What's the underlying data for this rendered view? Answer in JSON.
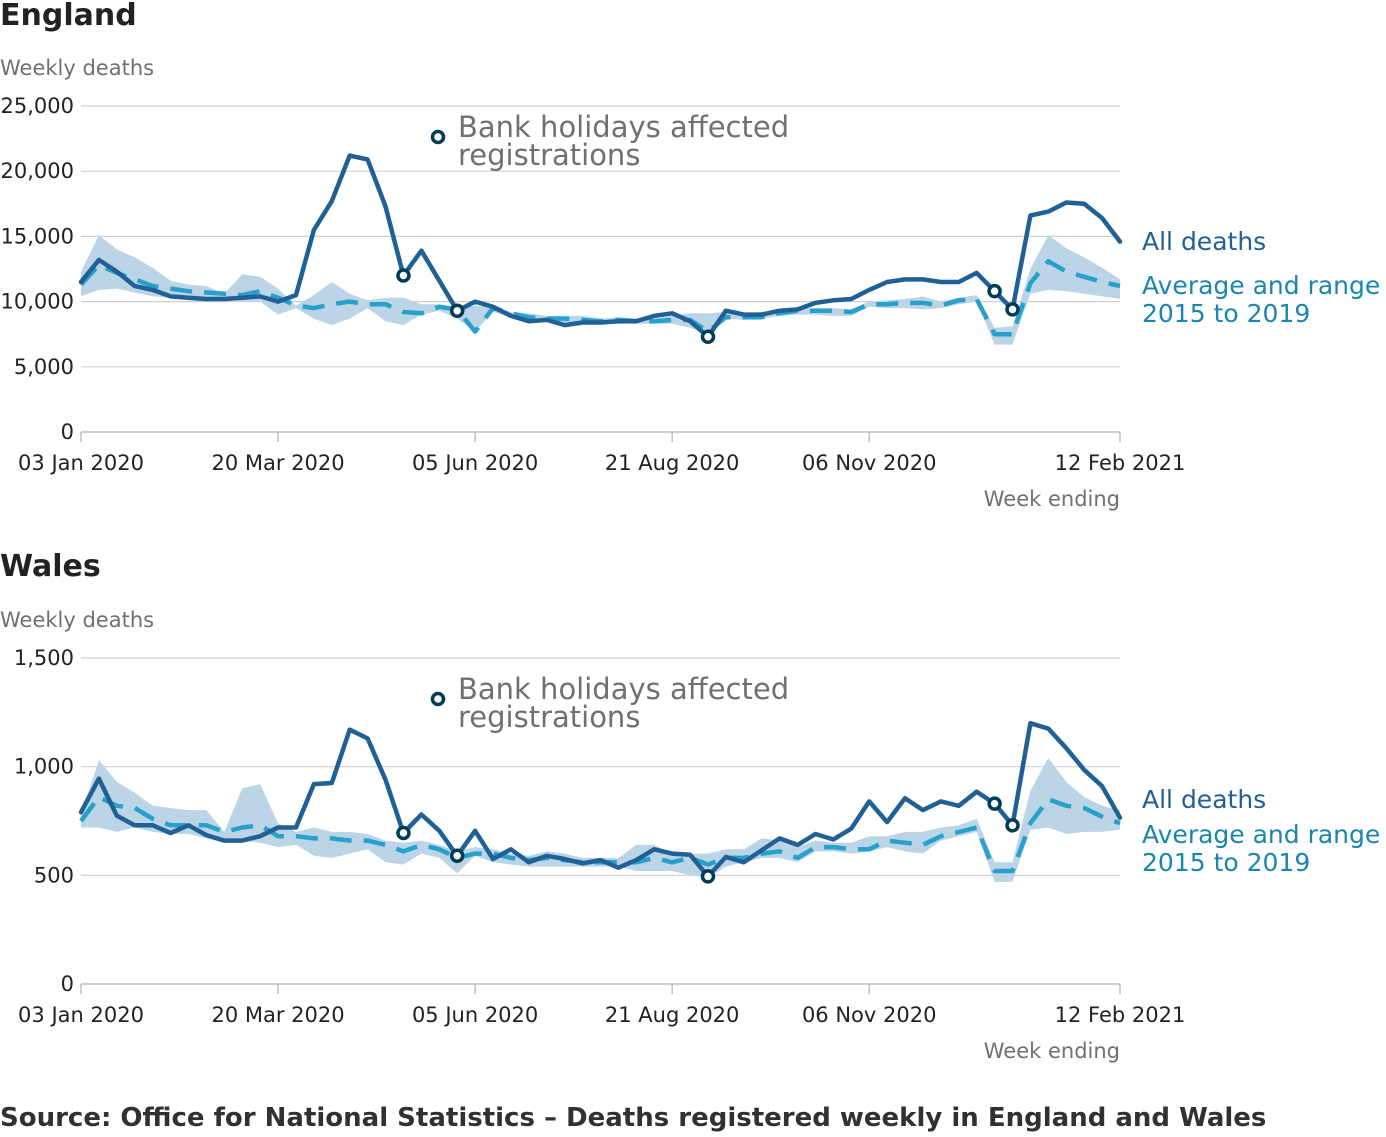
{
  "source": "Source: Office for National Statistics – Deaths registered weekly in England and Wales",
  "chart_data": [
    {
      "type": "line",
      "title": "England",
      "ylabel": "Weekly deaths",
      "xlabel": "Week ending",
      "ylim": [
        0,
        25000
      ],
      "yticks": [
        0,
        5000,
        10000,
        15000,
        20000,
        25000
      ],
      "ytick_labels": [
        "0",
        "5,000",
        "10,000",
        "15,000",
        "20,000",
        "25,000"
      ],
      "x_start": "03 Jan 2020",
      "x_end": "12 Feb 2021",
      "xtick_labels": [
        "03 Jan 2020",
        "20 Mar 2020",
        "05 Jun 2020",
        "21 Aug 2020",
        "06 Nov 2020",
        "12 Feb 2021"
      ],
      "xticks_index": [
        0,
        11,
        22,
        33,
        44,
        58
      ],
      "annotation": "Bank holidays affected registrations",
      "series": [
        {
          "name": "All deaths",
          "values": [
            11500,
            13200,
            12300,
            11200,
            10900,
            10400,
            10300,
            10200,
            10200,
            10300,
            10400,
            10000,
            10500,
            15500,
            17700,
            21200,
            20900,
            17300,
            12000,
            13900,
            11600,
            9300,
            10000,
            9600,
            8900,
            8500,
            8600,
            8200,
            8400,
            8400,
            8500,
            8500,
            8900,
            9100,
            8500,
            7300,
            9300,
            9000,
            9000,
            9300,
            9400,
            9900,
            10100,
            10200,
            10900,
            11500,
            11700,
            11700,
            11500,
            11500,
            12200,
            10800,
            9400,
            16600,
            16900,
            17600,
            17500,
            16400,
            14600
          ]
        },
        {
          "name": "Average and range 2015 to 2019",
          "values": [
            11300,
            12800,
            12200,
            11700,
            11200,
            11000,
            10800,
            10700,
            10600,
            10500,
            10800,
            10300,
            9700,
            9500,
            9800,
            10000,
            9800,
            9800,
            9200,
            9100,
            9600,
            9400,
            7700,
            9500,
            9100,
            8800,
            8700,
            8700,
            8600,
            8500,
            8600,
            8500,
            8500,
            8600,
            8600,
            7700,
            8800,
            8800,
            8800,
            9100,
            9300,
            9300,
            9300,
            9200,
            9800,
            9800,
            9900,
            9900,
            9700,
            10100,
            10200,
            7500,
            7500,
            11400,
            13100,
            12300,
            11900,
            11500,
            11200
          ],
          "range_low": [
            10400,
            10900,
            11000,
            10700,
            10400,
            10300,
            10100,
            10000,
            10200,
            10000,
            10000,
            9000,
            9500,
            8700,
            8200,
            8700,
            9500,
            8500,
            8200,
            9000,
            9300,
            8700,
            7700,
            9200,
            8800,
            8600,
            8500,
            8400,
            8300,
            8300,
            8300,
            8300,
            8300,
            8300,
            8000,
            7600,
            8700,
            8600,
            8700,
            8900,
            9000,
            9000,
            8900,
            8900,
            9600,
            9500,
            9500,
            9400,
            9500,
            9800,
            10000,
            6700,
            6700,
            10600,
            10900,
            10800,
            10600,
            10400,
            10200
          ],
          "range_high": [
            12300,
            15100,
            14000,
            13400,
            12600,
            11600,
            11300,
            11200,
            10600,
            12100,
            11900,
            11000,
            9700,
            10500,
            11500,
            10600,
            10100,
            10300,
            10300,
            9800,
            9800,
            9500,
            9700,
            9600,
            9200,
            9100,
            8900,
            8900,
            8900,
            8700,
            8800,
            8700,
            8700,
            8900,
            9100,
            9100,
            9200,
            9100,
            9200,
            9400,
            9500,
            9500,
            9500,
            9400,
            10000,
            10100,
            10200,
            10400,
            10000,
            10300,
            10500,
            8000,
            8100,
            12500,
            15100,
            14100,
            13400,
            12600,
            11700
          ]
        }
      ],
      "bank_holiday_points_index": [
        18,
        21,
        35,
        51,
        52
      ]
    },
    {
      "type": "line",
      "title": "Wales",
      "ylabel": "Weekly deaths",
      "xlabel": "Week ending",
      "ylim": [
        0,
        1500
      ],
      "yticks": [
        0,
        500,
        1000,
        1500
      ],
      "ytick_labels": [
        "0",
        "500",
        "1,000",
        "1,500"
      ],
      "x_start": "03 Jan 2020",
      "x_end": "12 Feb 2021",
      "xtick_labels": [
        "03 Jan 2020",
        "20 Mar 2020",
        "05 Jun 2020",
        "21 Aug 2020",
        "06 Nov 2020",
        "12 Feb 2021"
      ],
      "xticks_index": [
        0,
        11,
        22,
        33,
        44,
        58
      ],
      "annotation": "Bank holidays affected registrations",
      "series": [
        {
          "name": "All deaths",
          "values": [
            790,
            945,
            775,
            730,
            730,
            695,
            730,
            685,
            660,
            660,
            680,
            720,
            720,
            920,
            925,
            1170,
            1130,
            940,
            695,
            780,
            705,
            590,
            705,
            575,
            620,
            560,
            590,
            575,
            555,
            570,
            535,
            570,
            620,
            600,
            595,
            495,
            585,
            560,
            615,
            670,
            640,
            690,
            665,
            715,
            840,
            745,
            855,
            800,
            840,
            820,
            885,
            830,
            730,
            1200,
            1175,
            1085,
            985,
            910,
            765
          ],
          "name_en": "All deaths"
        },
        {
          "name": "Average and range 2015 to 2019",
          "values": [
            750,
            860,
            820,
            810,
            760,
            730,
            730,
            730,
            700,
            720,
            730,
            680,
            680,
            670,
            670,
            660,
            660,
            640,
            610,
            640,
            620,
            580,
            600,
            600,
            580,
            570,
            580,
            570,
            560,
            560,
            560,
            560,
            580,
            560,
            580,
            550,
            580,
            580,
            600,
            610,
            580,
            630,
            630,
            620,
            620,
            660,
            650,
            640,
            680,
            700,
            720,
            520,
            520,
            740,
            850,
            820,
            810,
            770,
            740
          ],
          "range_low": [
            720,
            720,
            700,
            720,
            700,
            690,
            690,
            670,
            650,
            660,
            650,
            630,
            640,
            590,
            580,
            600,
            620,
            560,
            550,
            600,
            580,
            510,
            590,
            560,
            550,
            540,
            540,
            540,
            540,
            540,
            540,
            520,
            520,
            520,
            500,
            490,
            540,
            560,
            580,
            580,
            560,
            610,
            610,
            600,
            610,
            630,
            610,
            600,
            660,
            680,
            700,
            470,
            470,
            710,
            720,
            690,
            700,
            700,
            710
          ],
          "range_low_note": "",
          "range_high": [
            780,
            1030,
            930,
            880,
            820,
            810,
            800,
            800,
            700,
            900,
            920,
            740,
            700,
            720,
            700,
            700,
            690,
            660,
            650,
            660,
            640,
            610,
            630,
            620,
            600,
            590,
            610,
            600,
            580,
            580,
            580,
            640,
            640,
            600,
            600,
            600,
            620,
            620,
            670,
            660,
            630,
            660,
            650,
            650,
            680,
            680,
            700,
            700,
            720,
            730,
            760,
            560,
            560,
            890,
            1040,
            930,
            860,
            820,
            800
          ]
        }
      ],
      "bank_holiday_points_index": [
        18,
        21,
        35,
        51,
        52
      ]
    }
  ]
}
